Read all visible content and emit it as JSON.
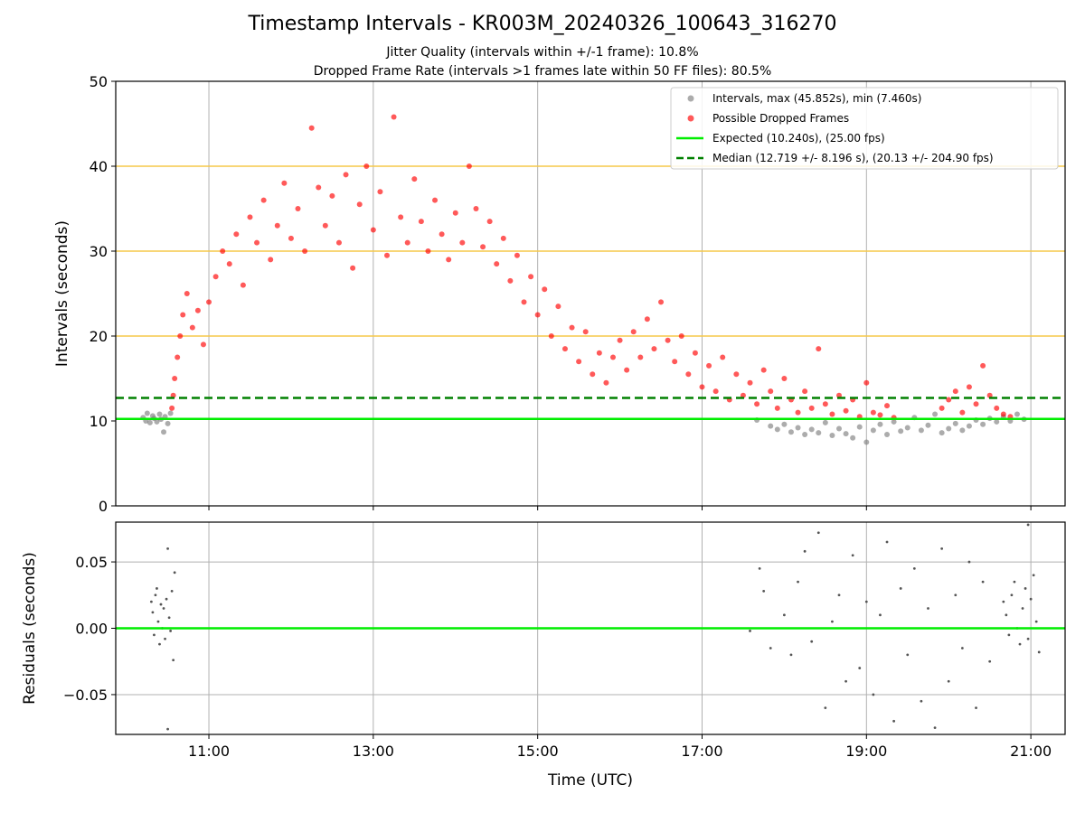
{
  "title": "Timestamp Intervals - KR003M_20240326_100643_316270",
  "subtitle_1": "Jitter Quality (intervals within +/-1 frame): 10.8%",
  "subtitle_2": "Dropped Frame Rate (intervals >1 frames late within 50 FF files): 80.5%",
  "colors": {
    "good": "#808080",
    "dropped": "#ff0000",
    "expected": "#00ee00",
    "median": "#008000",
    "ref_line": "#f5c84a",
    "grid": "#b0b0b0",
    "residual": "#555555"
  },
  "chart_data": [
    {
      "type": "scatter",
      "name": "intervals",
      "xlabel": "",
      "ylabel": "Intervals (seconds)",
      "ylim": [
        0,
        50
      ],
      "yticks": [
        0,
        10,
        20,
        30,
        40,
        50
      ],
      "xlim": [
        "09:52",
        "21:25"
      ],
      "xticks": [
        "11:00",
        "13:00",
        "15:00",
        "17:00",
        "19:00",
        "21:00"
      ],
      "grid": true,
      "reference_lines_y": [
        20,
        30,
        40
      ],
      "expected_y": 10.24,
      "median_y": 12.719,
      "legend_position": "top-right",
      "legend": [
        {
          "label": "Intervals, max (45.852s), min (7.460s)",
          "marker": "dot",
          "color": "good"
        },
        {
          "label": "Possible Dropped Frames",
          "marker": "dot",
          "color": "dropped"
        },
        {
          "label": "Expected (10.240s), (25.00 fps)",
          "marker": "solid",
          "color": "expected"
        },
        {
          "label": "Median (12.719 +/- 8.196 s), (20.13 +/- 204.90 fps)",
          "marker": "dashed",
          "color": "median"
        }
      ],
      "series": [
        {
          "name": "Intervals",
          "color": "good",
          "points": [
            [
              "10:12",
              10.4
            ],
            [
              "10:14",
              10.0
            ],
            [
              "10:15",
              10.9
            ],
            [
              "10:17",
              9.8
            ],
            [
              "10:19",
              10.6
            ],
            [
              "10:20",
              10.3
            ],
            [
              "10:22",
              9.9
            ],
            [
              "10:24",
              10.8
            ],
            [
              "10:25",
              10.2
            ],
            [
              "10:27",
              8.7
            ],
            [
              "10:28",
              10.5
            ],
            [
              "10:30",
              9.7
            ],
            [
              "10:32",
              10.9
            ],
            [
              "17:40",
              10.1
            ],
            [
              "17:50",
              9.4
            ],
            [
              "17:55",
              9.0
            ],
            [
              "18:00",
              9.6
            ],
            [
              "18:05",
              8.7
            ],
            [
              "18:10",
              9.2
            ],
            [
              "18:15",
              8.4
            ],
            [
              "18:20",
              9.0
            ],
            [
              "18:25",
              8.6
            ],
            [
              "18:30",
              9.8
            ],
            [
              "18:35",
              8.3
            ],
            [
              "18:40",
              9.1
            ],
            [
              "18:45",
              8.5
            ],
            [
              "18:50",
              8.0
            ],
            [
              "18:55",
              9.3
            ],
            [
              "19:00",
              7.5
            ],
            [
              "19:05",
              8.9
            ],
            [
              "19:10",
              9.6
            ],
            [
              "19:15",
              8.4
            ],
            [
              "19:20",
              9.9
            ],
            [
              "19:25",
              8.8
            ],
            [
              "19:30",
              9.2
            ],
            [
              "19:35",
              10.4
            ],
            [
              "19:40",
              8.9
            ],
            [
              "19:45",
              9.5
            ],
            [
              "19:50",
              10.8
            ],
            [
              "19:55",
              8.6
            ],
            [
              "20:00",
              9.1
            ],
            [
              "20:05",
              9.7
            ],
            [
              "20:10",
              8.9
            ],
            [
              "20:15",
              9.4
            ],
            [
              "20:20",
              10.1
            ],
            [
              "20:25",
              9.6
            ],
            [
              "20:30",
              10.3
            ],
            [
              "20:35",
              9.9
            ],
            [
              "20:40",
              10.5
            ],
            [
              "20:45",
              10.0
            ],
            [
              "20:50",
              10.8
            ],
            [
              "20:55",
              10.2
            ]
          ]
        },
        {
          "name": "Possible Dropped Frames",
          "color": "dropped",
          "points": [
            [
              "10:33",
              11.5
            ],
            [
              "10:34",
              13.0
            ],
            [
              "10:35",
              15.0
            ],
            [
              "10:37",
              17.5
            ],
            [
              "10:39",
              20.0
            ],
            [
              "10:41",
              22.5
            ],
            [
              "10:44",
              25.0
            ],
            [
              "10:48",
              21.0
            ],
            [
              "10:52",
              23.0
            ],
            [
              "10:56",
              19.0
            ],
            [
              "11:00",
              24.0
            ],
            [
              "11:05",
              27.0
            ],
            [
              "11:10",
              30.0
            ],
            [
              "11:15",
              28.5
            ],
            [
              "11:20",
              32.0
            ],
            [
              "11:25",
              26.0
            ],
            [
              "11:30",
              34.0
            ],
            [
              "11:35",
              31.0
            ],
            [
              "11:40",
              36.0
            ],
            [
              "11:45",
              29.0
            ],
            [
              "11:50",
              33.0
            ],
            [
              "11:55",
              38.0
            ],
            [
              "12:00",
              31.5
            ],
            [
              "12:05",
              35.0
            ],
            [
              "12:10",
              30.0
            ],
            [
              "12:15",
              44.5
            ],
            [
              "12:20",
              37.5
            ],
            [
              "12:25",
              33.0
            ],
            [
              "12:30",
              36.5
            ],
            [
              "12:35",
              31.0
            ],
            [
              "12:40",
              39.0
            ],
            [
              "12:45",
              28.0
            ],
            [
              "12:50",
              35.5
            ],
            [
              "12:55",
              40.0
            ],
            [
              "13:00",
              32.5
            ],
            [
              "13:05",
              37.0
            ],
            [
              "13:10",
              29.5
            ],
            [
              "13:15",
              45.8
            ],
            [
              "13:20",
              34.0
            ],
            [
              "13:25",
              31.0
            ],
            [
              "13:30",
              38.5
            ],
            [
              "13:35",
              33.5
            ],
            [
              "13:40",
              30.0
            ],
            [
              "13:45",
              36.0
            ],
            [
              "13:50",
              32.0
            ],
            [
              "13:55",
              29.0
            ],
            [
              "14:00",
              34.5
            ],
            [
              "14:05",
              31.0
            ],
            [
              "14:10",
              40.0
            ],
            [
              "14:15",
              35.0
            ],
            [
              "14:20",
              30.5
            ],
            [
              "14:25",
              33.5
            ],
            [
              "14:30",
              28.5
            ],
            [
              "14:35",
              31.5
            ],
            [
              "14:40",
              26.5
            ],
            [
              "14:45",
              29.5
            ],
            [
              "14:50",
              24.0
            ],
            [
              "14:55",
              27.0
            ],
            [
              "15:00",
              22.5
            ],
            [
              "15:05",
              25.5
            ],
            [
              "15:10",
              20.0
            ],
            [
              "15:15",
              23.5
            ],
            [
              "15:20",
              18.5
            ],
            [
              "15:25",
              21.0
            ],
            [
              "15:30",
              17.0
            ],
            [
              "15:35",
              20.5
            ],
            [
              "15:40",
              15.5
            ],
            [
              "15:45",
              18.0
            ],
            [
              "15:50",
              14.5
            ],
            [
              "15:55",
              17.5
            ],
            [
              "16:00",
              19.5
            ],
            [
              "16:05",
              16.0
            ],
            [
              "16:10",
              20.5
            ],
            [
              "16:15",
              17.5
            ],
            [
              "16:20",
              22.0
            ],
            [
              "16:25",
              18.5
            ],
            [
              "16:30",
              24.0
            ],
            [
              "16:35",
              19.5
            ],
            [
              "16:40",
              17.0
            ],
            [
              "16:45",
              20.0
            ],
            [
              "16:50",
              15.5
            ],
            [
              "16:55",
              18.0
            ],
            [
              "17:00",
              14.0
            ],
            [
              "17:05",
              16.5
            ],
            [
              "17:10",
              13.5
            ],
            [
              "17:15",
              17.5
            ],
            [
              "17:20",
              12.5
            ],
            [
              "17:25",
              15.5
            ],
            [
              "17:30",
              13.0
            ],
            [
              "17:35",
              14.5
            ],
            [
              "17:40",
              12.0
            ],
            [
              "17:45",
              16.0
            ],
            [
              "17:50",
              13.5
            ],
            [
              "17:55",
              11.5
            ],
            [
              "18:00",
              15.0
            ],
            [
              "18:05",
              12.5
            ],
            [
              "18:10",
              11.0
            ],
            [
              "18:15",
              13.5
            ],
            [
              "18:20",
              11.5
            ],
            [
              "18:25",
              18.5
            ],
            [
              "18:30",
              12.0
            ],
            [
              "18:35",
              10.8
            ],
            [
              "18:40",
              13.0
            ],
            [
              "18:45",
              11.2
            ],
            [
              "18:50",
              12.5
            ],
            [
              "18:55",
              10.5
            ],
            [
              "19:00",
              14.5
            ],
            [
              "19:05",
              11.0
            ],
            [
              "19:10",
              10.7
            ],
            [
              "19:15",
              11.8
            ],
            [
              "19:20",
              10.4
            ],
            [
              "19:55",
              11.5
            ],
            [
              "20:00",
              12.5
            ],
            [
              "20:05",
              13.5
            ],
            [
              "20:10",
              11.0
            ],
            [
              "20:15",
              14.0
            ],
            [
              "20:20",
              12.0
            ],
            [
              "20:25",
              16.5
            ],
            [
              "20:30",
              13.0
            ],
            [
              "20:35",
              11.5
            ],
            [
              "20:40",
              10.8
            ],
            [
              "20:45",
              10.5
            ]
          ]
        }
      ]
    },
    {
      "type": "scatter",
      "name": "residuals",
      "xlabel": "Time (UTC)",
      "ylabel": "Residuals (seconds)",
      "ylim": [
        -0.08,
        0.08
      ],
      "yticks": [
        -0.05,
        0.0,
        0.05
      ],
      "ytick_labels": [
        "−0.05",
        "0.00",
        "0.05"
      ],
      "xlim": [
        "09:52",
        "21:25"
      ],
      "xticks": [
        "11:00",
        "13:00",
        "15:00",
        "17:00",
        "19:00",
        "21:00"
      ],
      "grid": true,
      "zero_line_y": 0,
      "series": [
        {
          "name": "",
          "color": "residual",
          "points": [
            [
              "10:18",
              0.02
            ],
            [
              "10:19",
              0.012
            ],
            [
              "10:20",
              -0.005
            ],
            [
              "10:21",
              0.025
            ],
            [
              "10:22",
              0.03
            ],
            [
              "10:23",
              0.005
            ],
            [
              "10:24",
              -0.012
            ],
            [
              "10:25",
              0.018
            ],
            [
              "10:26",
              0.0
            ],
            [
              "10:27",
              0.015
            ],
            [
              "10:28",
              -0.008
            ],
            [
              "10:29",
              0.022
            ],
            [
              "10:30",
              0.06
            ],
            [
              "10:31",
              0.008
            ],
            [
              "10:32",
              -0.002
            ],
            [
              "10:33",
              0.028
            ],
            [
              "10:34",
              -0.024
            ],
            [
              "10:35",
              0.042
            ],
            [
              "10:30",
              -0.076
            ],
            [
              "17:35",
              -0.002
            ],
            [
              "17:42",
              0.045
            ],
            [
              "17:45",
              0.028
            ],
            [
              "17:50",
              -0.015
            ],
            [
              "18:00",
              0.01
            ],
            [
              "18:05",
              -0.02
            ],
            [
              "18:10",
              0.035
            ],
            [
              "18:15",
              0.058
            ],
            [
              "18:20",
              -0.01
            ],
            [
              "18:25",
              0.072
            ],
            [
              "18:30",
              -0.06
            ],
            [
              "18:35",
              0.005
            ],
            [
              "18:40",
              0.025
            ],
            [
              "18:45",
              -0.04
            ],
            [
              "18:50",
              0.055
            ],
            [
              "18:55",
              -0.03
            ],
            [
              "19:00",
              0.02
            ],
            [
              "19:05",
              -0.05
            ],
            [
              "19:10",
              0.01
            ],
            [
              "19:15",
              0.065
            ],
            [
              "19:20",
              -0.07
            ],
            [
              "19:25",
              0.03
            ],
            [
              "19:30",
              -0.02
            ],
            [
              "19:35",
              0.045
            ],
            [
              "19:40",
              -0.055
            ],
            [
              "19:45",
              0.015
            ],
            [
              "19:50",
              -0.075
            ],
            [
              "19:55",
              0.06
            ],
            [
              "20:00",
              -0.04
            ],
            [
              "20:05",
              0.025
            ],
            [
              "20:10",
              -0.015
            ],
            [
              "20:15",
              0.05
            ],
            [
              "20:20",
              -0.06
            ],
            [
              "20:25",
              0.035
            ],
            [
              "20:30",
              -0.025
            ],
            [
              "20:40",
              0.02
            ],
            [
              "20:42",
              0.01
            ],
            [
              "20:44",
              -0.005
            ],
            [
              "20:46",
              0.025
            ],
            [
              "20:48",
              0.035
            ],
            [
              "20:50",
              0.0
            ],
            [
              "20:52",
              -0.012
            ],
            [
              "20:54",
              0.015
            ],
            [
              "20:56",
              0.03
            ],
            [
              "20:58",
              -0.008
            ],
            [
              "21:00",
              0.022
            ],
            [
              "21:02",
              0.04
            ],
            [
              "21:04",
              0.005
            ],
            [
              "21:06",
              -0.018
            ],
            [
              "20:58",
              0.078
            ]
          ]
        }
      ]
    }
  ]
}
